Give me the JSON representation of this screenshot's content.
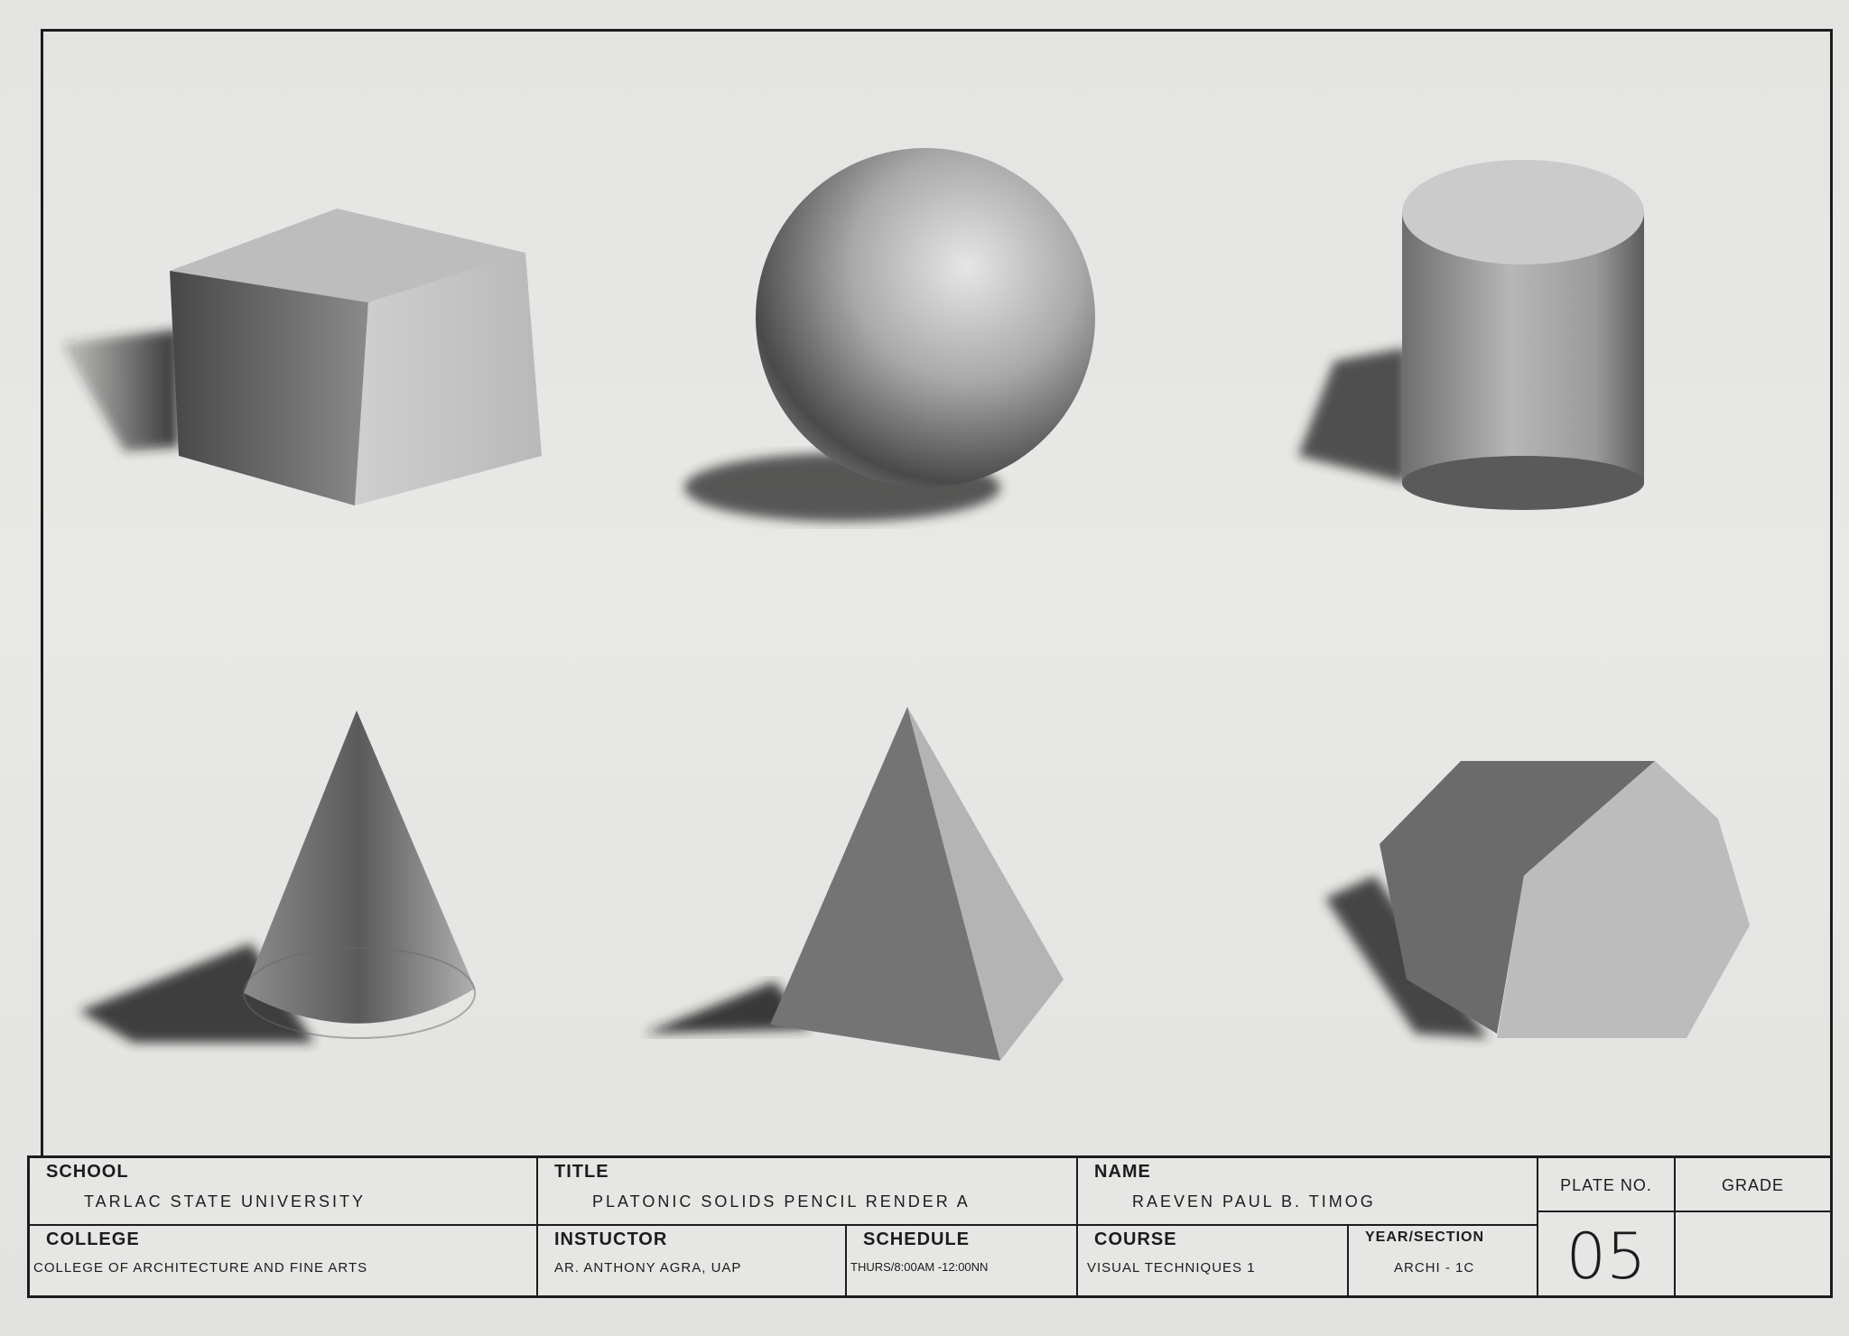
{
  "drawing": {
    "shapes": [
      {
        "name": "rectangular-prism"
      },
      {
        "name": "sphere"
      },
      {
        "name": "cylinder"
      },
      {
        "name": "cone"
      },
      {
        "name": "pyramid"
      },
      {
        "name": "hexagonal-prism"
      }
    ]
  },
  "title_block": {
    "school_label": "SCHOOL",
    "school_value": "TARLAC STATE UNIVERSITY",
    "title_label": "TITLE",
    "title_value": "PLATONIC SOLIDS PENCIL RENDER A",
    "name_label": "NAME",
    "name_value": "RAEVEN PAUL B. TIMOG",
    "plate_label": "PLATE No.",
    "plate_value": "05",
    "grade_label": "GRADE",
    "college_label": "COLLEGE",
    "college_value": "COLLEGE OF ARCHITECTURE AND FINE ARTS",
    "instructor_label": "INSTUCTOR",
    "instructor_value": "AR. ANTHONY AGRA, UAP",
    "schedule_label": "SCHEDULE",
    "schedule_value": "THURS/8:00am -12:00nn",
    "course_label": "COURSE",
    "course_value": "VISUAL TECHNIQUES 1",
    "year_label": "YEAR/SECTION",
    "year_value": "ARCHI - 1C"
  }
}
